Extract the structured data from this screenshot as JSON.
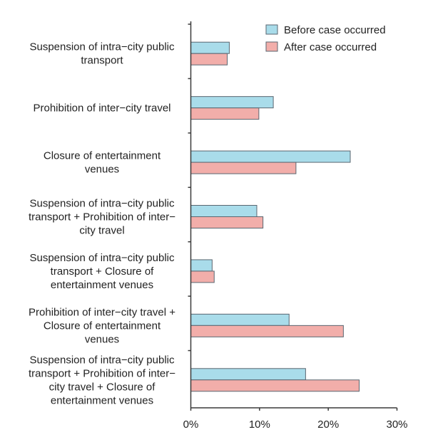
{
  "chart_data": {
    "type": "bar",
    "orientation": "horizontal",
    "categories": [
      [
        "Suspension of intra−city public",
        "transport"
      ],
      [
        "Prohibition of inter−city travel"
      ],
      [
        "Closure of entertainment",
        "venues"
      ],
      [
        "Suspension of intra−city public",
        "transport + Prohibition of inter−",
        "city travel"
      ],
      [
        "Suspension of intra−city public",
        "transport + Closure of",
        "entertainment venues"
      ],
      [
        "Prohibition of inter−city travel +",
        "Closure of entertainment",
        "venues"
      ],
      [
        "Suspension of intra−city public",
        "transport + Prohibition of inter−",
        "city travel + Closure of",
        "entertainment venues"
      ]
    ],
    "series": [
      {
        "name": "Before case occurred",
        "color": "#a9dcea",
        "values": [
          5.6,
          12.0,
          23.2,
          9.6,
          3.1,
          14.3,
          16.7
        ]
      },
      {
        "name": "After case occurred",
        "color": "#f2aeaa",
        "values": [
          5.3,
          9.9,
          15.3,
          10.5,
          3.4,
          22.2,
          24.5
        ]
      }
    ],
    "xticks": [
      "0%",
      "10%",
      "20%",
      "30%"
    ],
    "xlim": [
      0,
      30
    ],
    "xlabel": "",
    "ylabel": "",
    "grid": false,
    "legend_position": "top-right"
  }
}
